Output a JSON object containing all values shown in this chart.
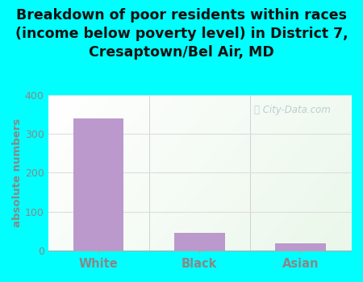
{
  "categories": [
    "White",
    "Black",
    "Asian"
  ],
  "values": [
    340,
    45,
    18
  ],
  "bar_color": "#bb99cc",
  "title": "Breakdown of poor residents within races\n(income below poverty level) in District 7,\nCresaptown/Bel Air, MD",
  "ylabel": "absolute numbers",
  "ylim": [
    0,
    400
  ],
  "yticks": [
    0,
    100,
    200,
    300,
    400
  ],
  "outer_bg": "#00ffff",
  "plot_bg": "#f0f8f0",
  "title_color": "#111111",
  "title_fontsize": 12.5,
  "axis_label_color": "#888888",
  "tick_label_color": "#888888",
  "grid_color": "#dddddd",
  "watermark": "City-Data.com",
  "watermark_color": "#b0c8c8"
}
